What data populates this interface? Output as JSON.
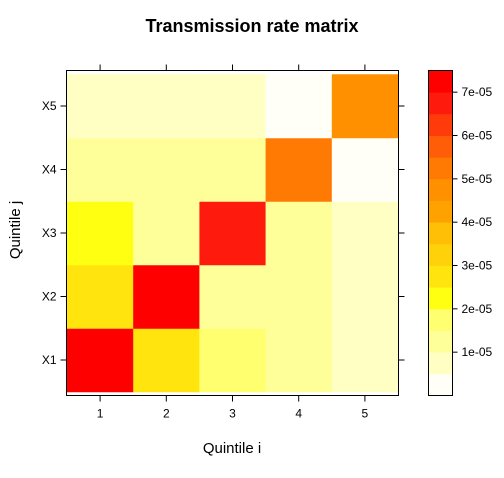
{
  "chart_data": {
    "type": "heatmap",
    "title": "Transmission rate matrix",
    "xlabel": "Quintile i",
    "ylabel": "Quintile j",
    "x_categories": [
      "1",
      "2",
      "3",
      "4",
      "5"
    ],
    "y_categories": [
      "X1",
      "X2",
      "X3",
      "X4",
      "X5"
    ],
    "values": [
      [
        7.2e-05,
        2.6e-05,
        1.8e-05,
        1.2e-05,
        6e-06
      ],
      [
        2.7e-05,
        7.1e-05,
        1.2e-05,
        1.2e-05,
        6e-06
      ],
      [
        2e-05,
        1.3e-05,
        6.8e-05,
        1.2e-05,
        6e-06
      ],
      [
        1.3e-05,
        1.3e-05,
        1.3e-05,
        5.3e-05,
        1e-06
      ],
      [
        9e-06,
        9e-06,
        9e-06,
        1e-06,
        4.5e-05
      ]
    ],
    "colorbar": {
      "range": [
        0,
        7.5e-05
      ],
      "step": 5e-06,
      "tick_values": [
        1e-05,
        2e-05,
        3e-05,
        4e-05,
        5e-05,
        6e-05,
        7e-05
      ],
      "tick_labels": [
        "1e-05",
        "2e-05",
        "3e-05",
        "4e-05",
        "5e-05",
        "6e-05",
        "7e-05"
      ],
      "colors": [
        "#FFFFF7",
        "#FFFFC4",
        "#FFFF9A",
        "#FFFF6F",
        "#FFFF11",
        "#FFE40E",
        "#FFD10A",
        "#FFBF06",
        "#FFA200",
        "#FF9100",
        "#FF7A02",
        "#FF5D07",
        "#FF3A0B",
        "#FF1A0E",
        "#FF0000"
      ]
    }
  }
}
